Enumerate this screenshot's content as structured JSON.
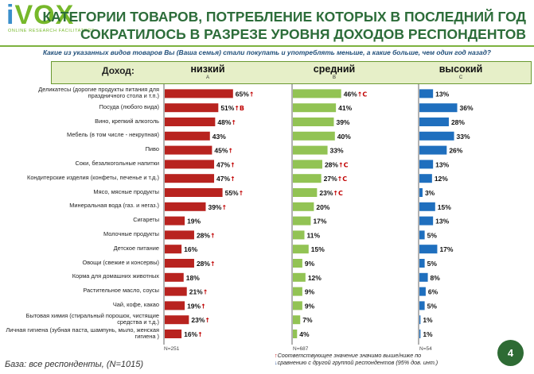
{
  "logo": {
    "brand_i": "i",
    "brand_rest": "VOX",
    "tagline": "ONLINE RESEARCH FACILITATORS"
  },
  "title": {
    "line1": "КАТЕГОРИИ ТОВАРОВ, ПОТРЕБЛЕНИЕ КОТОРЫХ В ПОСЛЕДНИЙ ГОД",
    "line2": "СОКРАТИЛОСЬ В РАЗРЕЗЕ УРОВНЯ ДОХОДОВ РЕСПОНДЕНТОВ"
  },
  "question": "Какие из указанных видов товаров Вы (Ваша семья) стали покупать и употреблять меньше, а какие больше, чем один год назад?",
  "header": {
    "income_label": "Доход:"
  },
  "footer": {
    "base": "База: все респонденты, (N=1015)",
    "legend_line1": "Соответствующее значение значимо выше/ниже по",
    "legend_line2": "сравнению с другой группой респондентов (95% дов. инт.)",
    "up_symbol": "↑",
    "down_symbol": "↓",
    "page_number": "4"
  },
  "colors": {
    "low": "#b8231f",
    "mid": "#92c354",
    "high": "#1f6fbe",
    "title": "#2d6d3a",
    "arrow_up": "#c00000"
  },
  "chart_data": {
    "type": "bar",
    "orientation": "horizontal",
    "unit": "%",
    "title": "Категории товаров, потребление которых в последний год сократилось в разрезе уровня доходов респондентов",
    "xlim": [
      0,
      70
    ],
    "categories": [
      "Деликатесы (дорогие продукты питания для праздничного стола и т.п.)",
      "Посуда (любого вида)",
      "Вино, крепкий алкоголь",
      "Мебель (в том числе - некрупная)",
      "Пиво",
      "Соки, безалкогольные напитки",
      "Кондитерские изделия (конфеты, печенье и т.д.)",
      "Мясо, мясные продукты",
      "Минеральная вода (газ. и негаз.)",
      "Сигареты",
      "Молочные продукты",
      "Детское питание",
      "Овощи (свежие и консервы)",
      "Корма для домашних животных",
      "Растительное масло, соусы",
      "Чай, кофе, какао",
      "Бытовая химия (стиральный порошок, чистящие средства и т.д.)",
      "Личная гигиена (зубная паста, шампунь, мыло, женская гигиена )"
    ],
    "series": [
      {
        "name": "низкий",
        "letter": "A",
        "n_label": "N=251",
        "values": [
          65,
          51,
          48,
          43,
          45,
          47,
          47,
          55,
          39,
          19,
          28,
          16,
          28,
          18,
          21,
          19,
          23,
          16
        ],
        "sig": [
          "↑",
          "↑B",
          "↑",
          "",
          "↑",
          "↑",
          "↑",
          "↑",
          "↑",
          "",
          "↑",
          "",
          "↑",
          "",
          "↑",
          "↑",
          "↑",
          "↑"
        ]
      },
      {
        "name": "средний",
        "letter": "B",
        "n_label": "N=687",
        "values": [
          46,
          41,
          39,
          40,
          33,
          28,
          27,
          23,
          20,
          17,
          11,
          15,
          9,
          12,
          9,
          9,
          7,
          4
        ],
        "sig": [
          "↑C",
          "",
          "",
          "",
          "",
          "↑C",
          "↑C",
          "↑C",
          "",
          "",
          "",
          "",
          "",
          "",
          "",
          "",
          "",
          ""
        ]
      },
      {
        "name": "высокий",
        "letter": "C",
        "n_label": "N=54",
        "values": [
          13,
          36,
          28,
          33,
          26,
          13,
          12,
          3,
          15,
          13,
          5,
          17,
          5,
          8,
          6,
          5,
          1,
          1
        ],
        "sig": [
          "",
          "",
          "",
          "",
          "",
          "",
          "",
          "",
          "",
          "",
          "",
          "",
          "",
          "",
          "",
          "",
          "",
          ""
        ]
      }
    ]
  }
}
